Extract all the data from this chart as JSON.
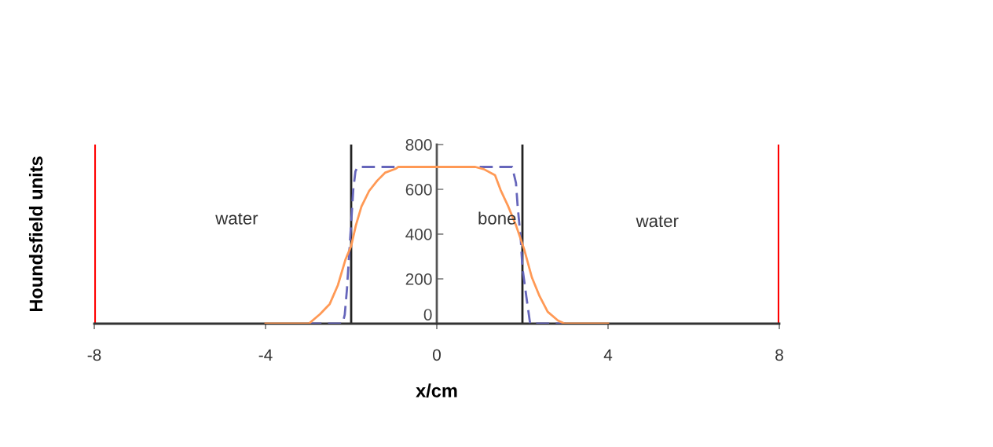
{
  "chart_data": {
    "type": "line",
    "xlabel": "x/cm",
    "ylabel": "Houndsfield units",
    "xlim": [
      -8,
      8
    ],
    "xticks": [
      -8,
      -4,
      0,
      4,
      8
    ],
    "ylim": [
      0,
      800
    ],
    "yticks": [
      0,
      200,
      400,
      600,
      800
    ],
    "grid": false,
    "legend": false,
    "marker": "none",
    "series": [
      {
        "color": "#6666bb",
        "line_style": "dashed",
        "x": [
          -3,
          -2.2,
          -2.15,
          -2.1,
          -2.05,
          -2.0,
          -1.95,
          -1.9,
          -1.85,
          1.76,
          1.85,
          1.89,
          1.96,
          2.0,
          2.09,
          2.18,
          3
        ],
        "values": [
          0,
          0,
          40,
          150,
          300,
          450,
          600,
          680,
          700,
          700,
          628,
          520,
          382,
          250,
          123,
          0,
          0
        ]
      },
      {
        "color": "#ff9955",
        "line_style": "solid",
        "x": [
          -4,
          -2.99,
          -2.73,
          -2.5,
          -2.31,
          -2.13,
          -2.0,
          -1.89,
          -1.76,
          -1.58,
          -1.39,
          -1.21,
          -0.97,
          -0.9,
          0.9,
          1.1,
          1.36,
          1.49,
          1.67,
          1.85,
          2.04,
          2.22,
          2.4,
          2.59,
          2.83,
          2.99,
          4
        ],
        "values": [
          0,
          0,
          42,
          88,
          172,
          288,
          347,
          439,
          523,
          593,
          639,
          674,
          691,
          700,
          700,
          690,
          663,
          597,
          523,
          439,
          333,
          207,
          123,
          53,
          14,
          0,
          0
        ]
      }
    ],
    "ref_lines": [
      {
        "axis": "x",
        "value": -8,
        "color": "#ff0000"
      },
      {
        "axis": "x",
        "value": -2,
        "color": "#222222"
      },
      {
        "axis": "x",
        "value": 2,
        "color": "#222222"
      },
      {
        "axis": "x",
        "value": 8,
        "color": "#ff0000"
      }
    ],
    "annotations": [
      "water",
      "bone",
      "water"
    ]
  }
}
